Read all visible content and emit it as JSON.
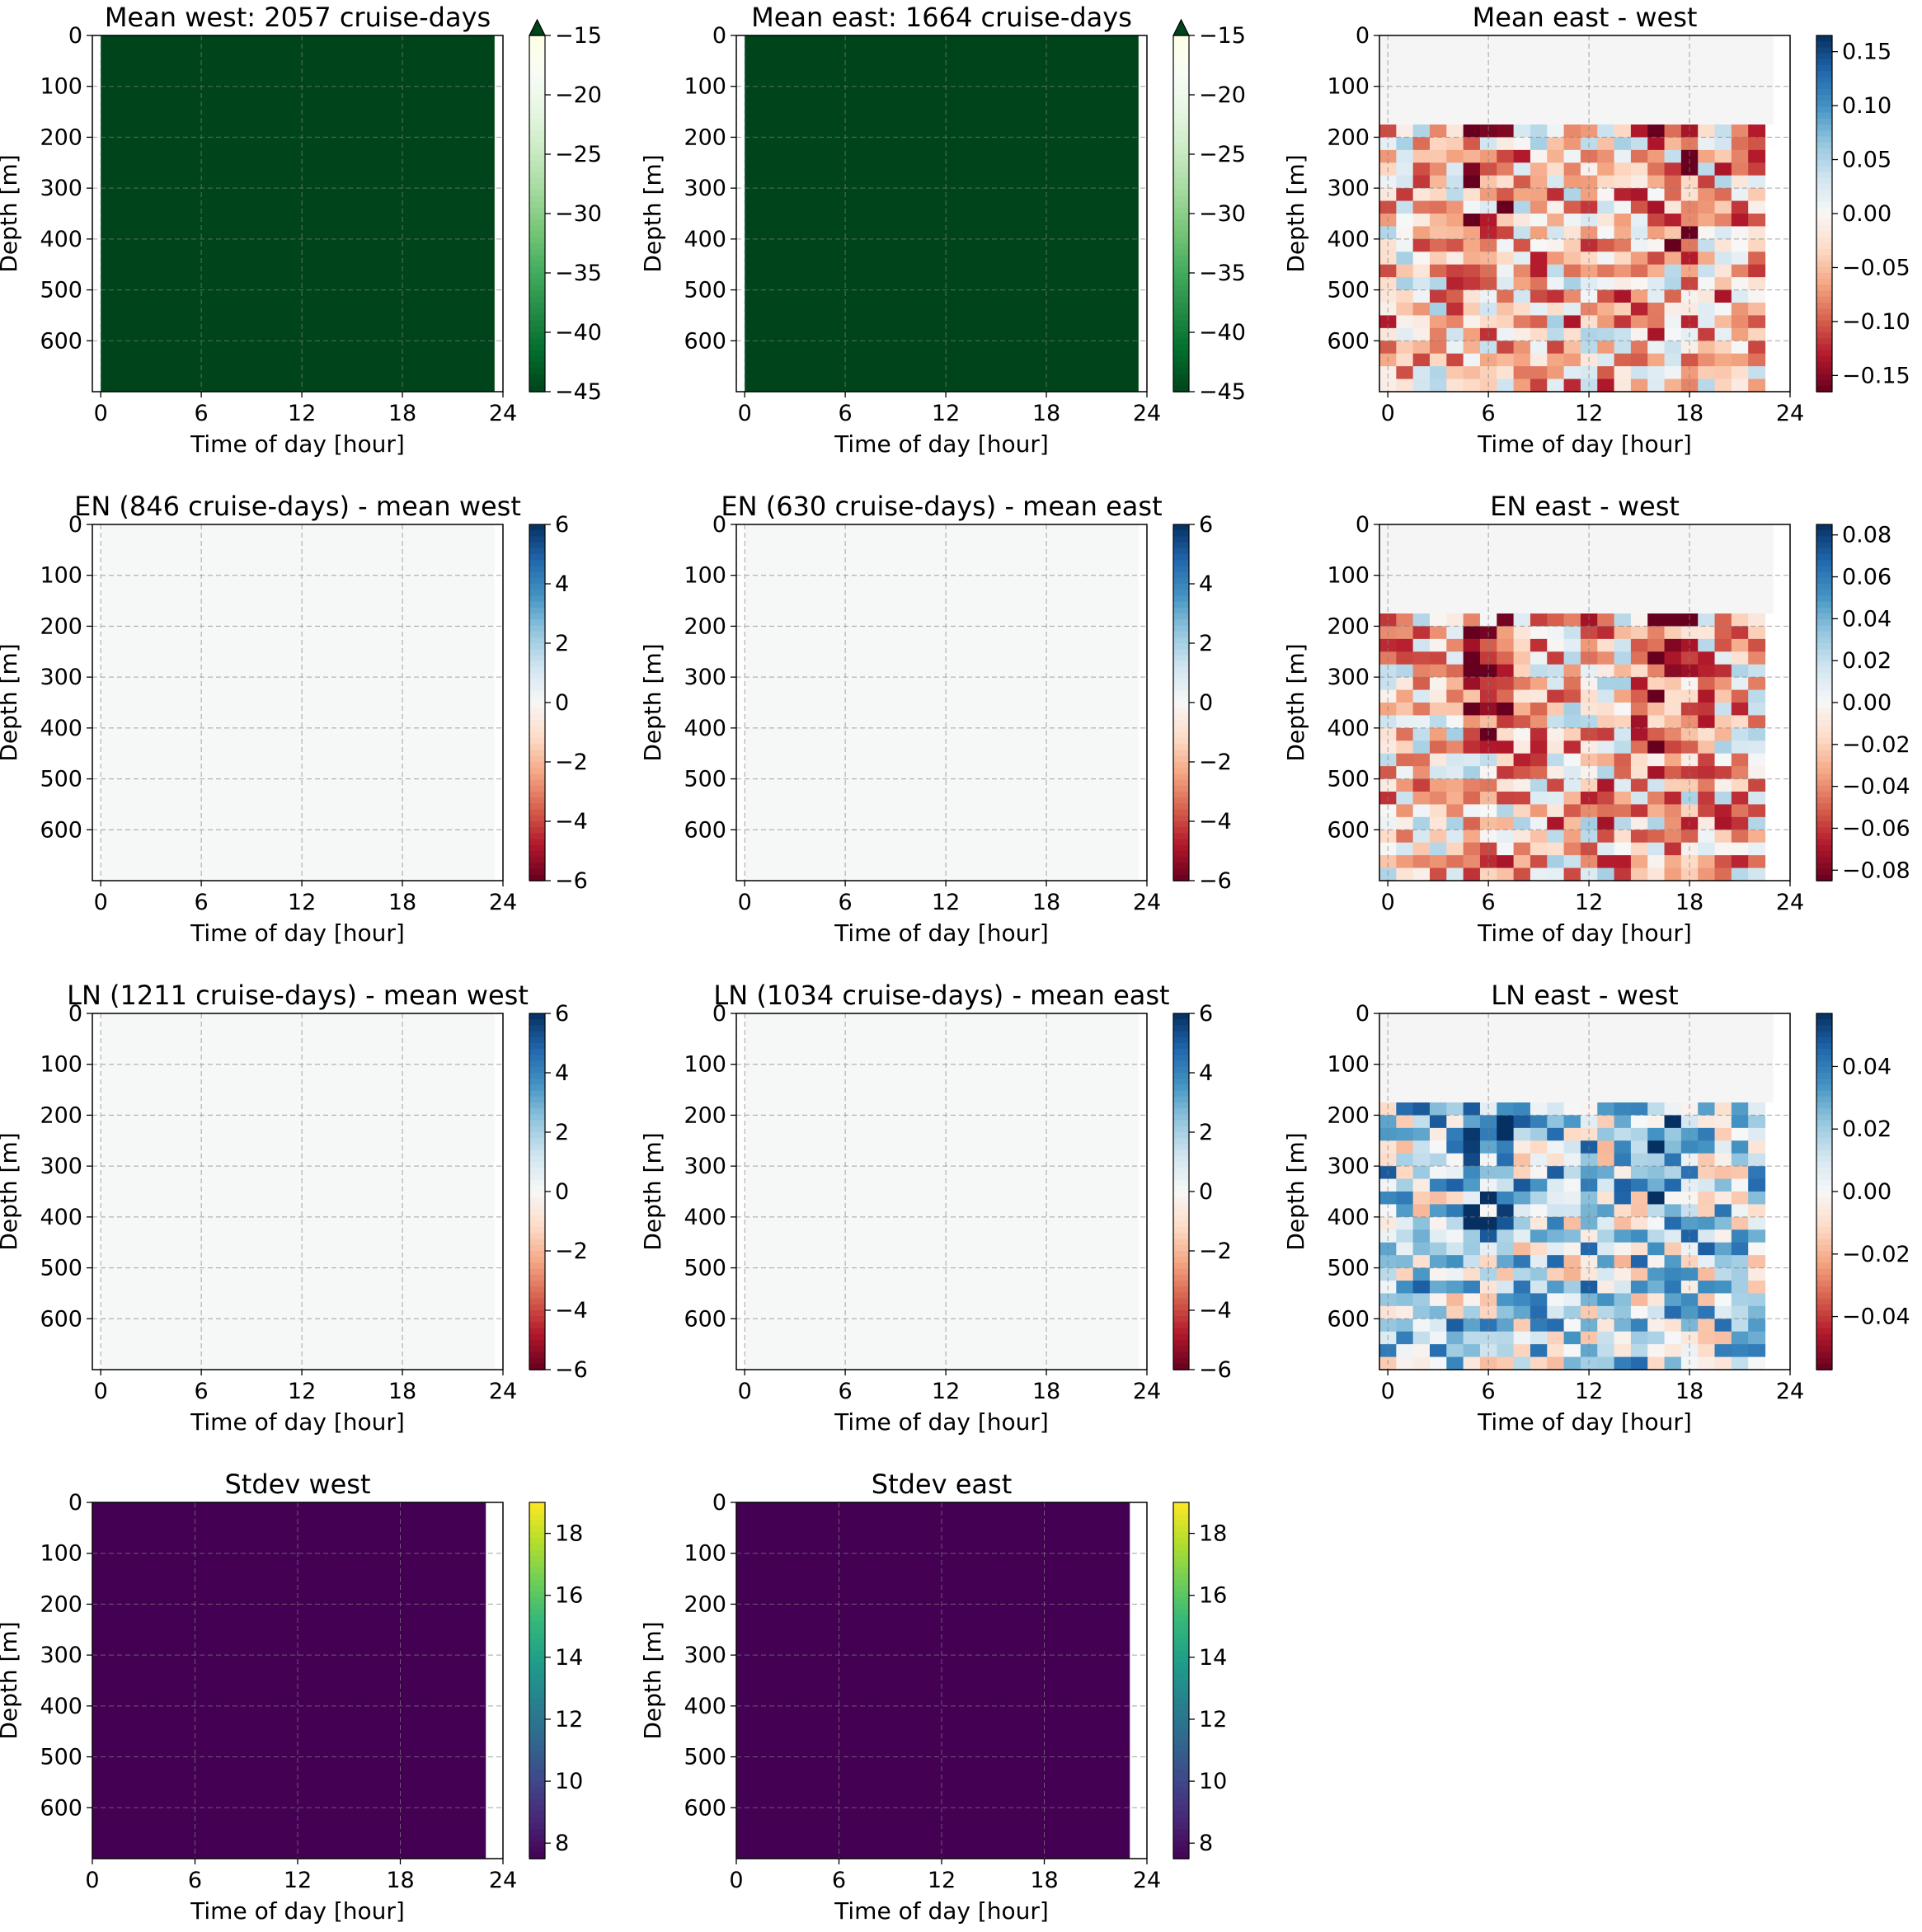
{
  "chart_data": [
    {
      "type": "heatmap",
      "title": "Mean west: 2057 cruise-days",
      "xlabel": "Time of day [hour]",
      "ylabel": "Depth [m]",
      "xlim": [
        -0.5,
        24
      ],
      "ylim": [
        700,
        0
      ],
      "xticks": [
        "0",
        "6",
        "12",
        "18",
        "24"
      ],
      "yticks": [
        "0",
        "100",
        "200",
        "300",
        "400",
        "500",
        "600"
      ],
      "grid": true,
      "colormap": "Greens_r",
      "colorbar": {
        "range": [
          -45,
          -15
        ],
        "ticks": [
          "−15",
          "−20",
          "−25",
          "−30",
          "−35",
          "−40",
          "−45"
        ],
        "extend": "max"
      },
      "fill": "uniform",
      "fill_color": "#00441b",
      "data_hours": [
        0,
        23.5
      ]
    },
    {
      "type": "heatmap",
      "title": "Mean east: 1664 cruise-days",
      "xlabel": "Time of day [hour]",
      "ylabel": "Depth [m]",
      "xlim": [
        -0.5,
        24
      ],
      "ylim": [
        700,
        0
      ],
      "xticks": [
        "0",
        "6",
        "12",
        "18",
        "24"
      ],
      "yticks": [
        "0",
        "100",
        "200",
        "300",
        "400",
        "500",
        "600"
      ],
      "grid": true,
      "colormap": "Greens_r",
      "colorbar": {
        "range": [
          -45,
          -15
        ],
        "ticks": [
          "−15",
          "−20",
          "−25",
          "−30",
          "−35",
          "−40",
          "−45"
        ],
        "extend": "max"
      },
      "fill": "uniform",
      "fill_color": "#00441b",
      "data_hours": [
        0,
        23.5
      ]
    },
    {
      "type": "heatmap",
      "title": "Mean east - west",
      "xlabel": "Time of day [hour]",
      "ylabel": "Depth [m]",
      "xlim": [
        -0.5,
        24
      ],
      "ylim": [
        700,
        0
      ],
      "xticks": [
        "0",
        "6",
        "12",
        "18",
        "24"
      ],
      "yticks": [
        "0",
        "100",
        "200",
        "300",
        "400",
        "500",
        "600"
      ],
      "grid": true,
      "colormap": "RdBu",
      "colorbar": {
        "range": [
          -0.165,
          0.165
        ],
        "ticks": [
          "0.15",
          "0.10",
          "0.05",
          "0.00",
          "−0.05",
          "−0.10",
          "−0.15"
        ]
      },
      "fill": "anomaly",
      "data_hours": [
        0,
        22.5
      ],
      "data_depth": [
        0,
        700
      ],
      "cell_hours": 1,
      "cell_depth": 25,
      "anomaly_start_depth": 175,
      "background": "#f5f5f5",
      "bias": "negative",
      "amplitude": 0.16
    },
    {
      "type": "heatmap",
      "title": "EN (846 cruise-days) - mean west",
      "xlabel": "Time of day [hour]",
      "ylabel": "Depth [m]",
      "xlim": [
        -0.5,
        24
      ],
      "ylim": [
        700,
        0
      ],
      "xticks": [
        "0",
        "6",
        "12",
        "18",
        "24"
      ],
      "yticks": [
        "0",
        "100",
        "200",
        "300",
        "400",
        "500",
        "600"
      ],
      "grid": true,
      "colormap": "RdBu",
      "colorbar": {
        "range": [
          -6,
          6
        ],
        "ticks": [
          "6",
          "4",
          "2",
          "0",
          "−2",
          "−4",
          "−6"
        ]
      },
      "fill": "uniform",
      "fill_color": "#f6f7f7",
      "data_hours": [
        0,
        23.5
      ]
    },
    {
      "type": "heatmap",
      "title": "EN (630 cruise-days) - mean east",
      "xlabel": "Time of day [hour]",
      "ylabel": "Depth [m]",
      "xlim": [
        -0.5,
        24
      ],
      "ylim": [
        700,
        0
      ],
      "xticks": [
        "0",
        "6",
        "12",
        "18",
        "24"
      ],
      "yticks": [
        "0",
        "100",
        "200",
        "300",
        "400",
        "500",
        "600"
      ],
      "grid": true,
      "colormap": "RdBu",
      "colorbar": {
        "range": [
          -6,
          6
        ],
        "ticks": [
          "6",
          "4",
          "2",
          "0",
          "−2",
          "−4",
          "−6"
        ]
      },
      "fill": "uniform",
      "fill_color": "#f6f7f7",
      "data_hours": [
        0,
        23.5
      ]
    },
    {
      "type": "heatmap",
      "title": "EN east - west",
      "xlabel": "Time of day [hour]",
      "ylabel": "Depth [m]",
      "xlim": [
        -0.5,
        24
      ],
      "ylim": [
        700,
        0
      ],
      "xticks": [
        "0",
        "6",
        "12",
        "18",
        "24"
      ],
      "yticks": [
        "0",
        "100",
        "200",
        "300",
        "400",
        "500",
        "600"
      ],
      "grid": true,
      "colormap": "RdBu",
      "colorbar": {
        "range": [
          -0.085,
          0.085
        ],
        "ticks": [
          "0.08",
          "0.06",
          "0.04",
          "0.02",
          "0.00",
          "−0.02",
          "−0.04",
          "−0.06",
          "−0.08"
        ]
      },
      "fill": "anomaly",
      "data_hours": [
        0,
        22.5
      ],
      "data_depth": [
        0,
        700
      ],
      "cell_hours": 1,
      "cell_depth": 25,
      "anomaly_start_depth": 175,
      "background": "#f5f5f5",
      "bias": "negative",
      "amplitude": 0.085
    },
    {
      "type": "heatmap",
      "title": "LN (1211 cruise-days) - mean west",
      "xlabel": "Time of day [hour]",
      "ylabel": "Depth [m]",
      "xlim": [
        -0.5,
        24
      ],
      "ylim": [
        700,
        0
      ],
      "xticks": [
        "0",
        "6",
        "12",
        "18",
        "24"
      ],
      "yticks": [
        "0",
        "100",
        "200",
        "300",
        "400",
        "500",
        "600"
      ],
      "grid": true,
      "colormap": "RdBu",
      "colorbar": {
        "range": [
          -6,
          6
        ],
        "ticks": [
          "6",
          "4",
          "2",
          "0",
          "−2",
          "−4",
          "−6"
        ]
      },
      "fill": "uniform",
      "fill_color": "#f6f7f7",
      "data_hours": [
        0,
        23.5
      ]
    },
    {
      "type": "heatmap",
      "title": "LN (1034 cruise-days) - mean east",
      "xlabel": "Time of day [hour]",
      "ylabel": "Depth [m]",
      "xlim": [
        -0.5,
        24
      ],
      "ylim": [
        700,
        0
      ],
      "xticks": [
        "0",
        "6",
        "12",
        "18",
        "24"
      ],
      "yticks": [
        "0",
        "100",
        "200",
        "300",
        "400",
        "500",
        "600"
      ],
      "grid": true,
      "colormap": "RdBu",
      "colorbar": {
        "range": [
          -6,
          6
        ],
        "ticks": [
          "6",
          "4",
          "2",
          "0",
          "−2",
          "−4",
          "−6"
        ]
      },
      "fill": "uniform",
      "fill_color": "#f6f7f7",
      "data_hours": [
        0,
        23.5
      ]
    },
    {
      "type": "heatmap",
      "title": "LN east - west",
      "xlabel": "Time of day [hour]",
      "ylabel": "Depth [m]",
      "xlim": [
        -0.5,
        24
      ],
      "ylim": [
        700,
        0
      ],
      "xticks": [
        "0",
        "6",
        "12",
        "18",
        "24"
      ],
      "yticks": [
        "0",
        "100",
        "200",
        "300",
        "400",
        "500",
        "600"
      ],
      "grid": true,
      "colormap": "RdBu",
      "colorbar": {
        "range": [
          -0.057,
          0.057
        ],
        "ticks": [
          "0.04",
          "0.02",
          "0.00",
          "−0.02",
          "−0.04"
        ]
      },
      "fill": "anomaly",
      "data_hours": [
        0,
        22.5
      ],
      "data_depth": [
        0,
        700
      ],
      "cell_hours": 1,
      "cell_depth": 25,
      "anomaly_start_depth": 175,
      "background": "#f5f5f5",
      "bias": "positive",
      "amplitude": 0.057
    },
    {
      "type": "heatmap",
      "title": "Stdev west",
      "xlabel": "Time of day [hour]",
      "ylabel": "Depth [m]",
      "xlim": [
        0,
        24
      ],
      "ylim": [
        700,
        0
      ],
      "xticks": [
        "0",
        "6",
        "12",
        "18",
        "24"
      ],
      "yticks": [
        "0",
        "100",
        "200",
        "300",
        "400",
        "500",
        "600"
      ],
      "grid": true,
      "colormap": "viridis",
      "colorbar": {
        "range": [
          7.5,
          19
        ],
        "ticks": [
          "18",
          "16",
          "14",
          "12",
          "10",
          "8"
        ]
      },
      "fill": "uniform",
      "fill_color": "#440154",
      "data_hours": [
        0,
        23
      ]
    },
    {
      "type": "heatmap",
      "title": "Stdev east",
      "xlabel": "Time of day [hour]",
      "ylabel": "Depth [m]",
      "xlim": [
        0,
        24
      ],
      "ylim": [
        700,
        0
      ],
      "xticks": [
        "0",
        "6",
        "12",
        "18",
        "24"
      ],
      "yticks": [
        "0",
        "100",
        "200",
        "300",
        "400",
        "500",
        "600"
      ],
      "grid": true,
      "colormap": "viridis",
      "colorbar": {
        "range": [
          7.5,
          19
        ],
        "ticks": [
          "18",
          "16",
          "14",
          "12",
          "10",
          "8"
        ]
      },
      "fill": "uniform",
      "fill_color": "#440154",
      "data_hours": [
        0,
        23
      ]
    }
  ]
}
